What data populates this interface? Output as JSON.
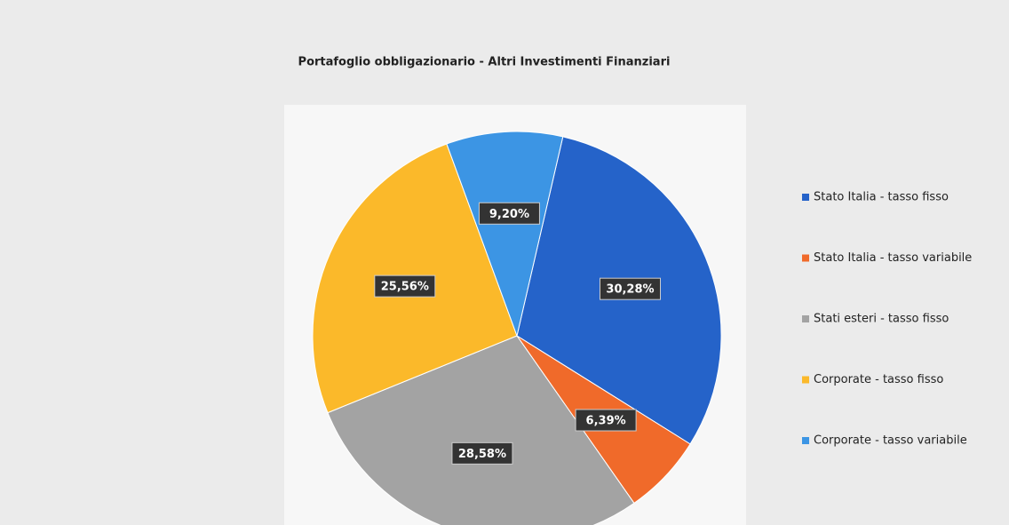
{
  "chart_data": {
    "type": "pie",
    "title": "Portafoglio obbligazionario - Altri Investimenti Finanziari",
    "categories": [
      "Stato Italia - tasso fisso",
      "Stato Italia - tasso variabile",
      "Stati esteri - tasso fisso",
      "Corporate - tasso fisso",
      "Corporate - tasso variabile"
    ],
    "values": [
      30.28,
      6.39,
      28.58,
      25.56,
      9.2
    ],
    "value_labels": [
      "30,28%",
      "6,39%",
      "28,58%",
      "25,56%",
      "9,20%"
    ],
    "colors": [
      "#2563c9",
      "#f06a2a",
      "#a3a3a3",
      "#fbb92a",
      "#3c95e4"
    ],
    "legend": "right"
  }
}
